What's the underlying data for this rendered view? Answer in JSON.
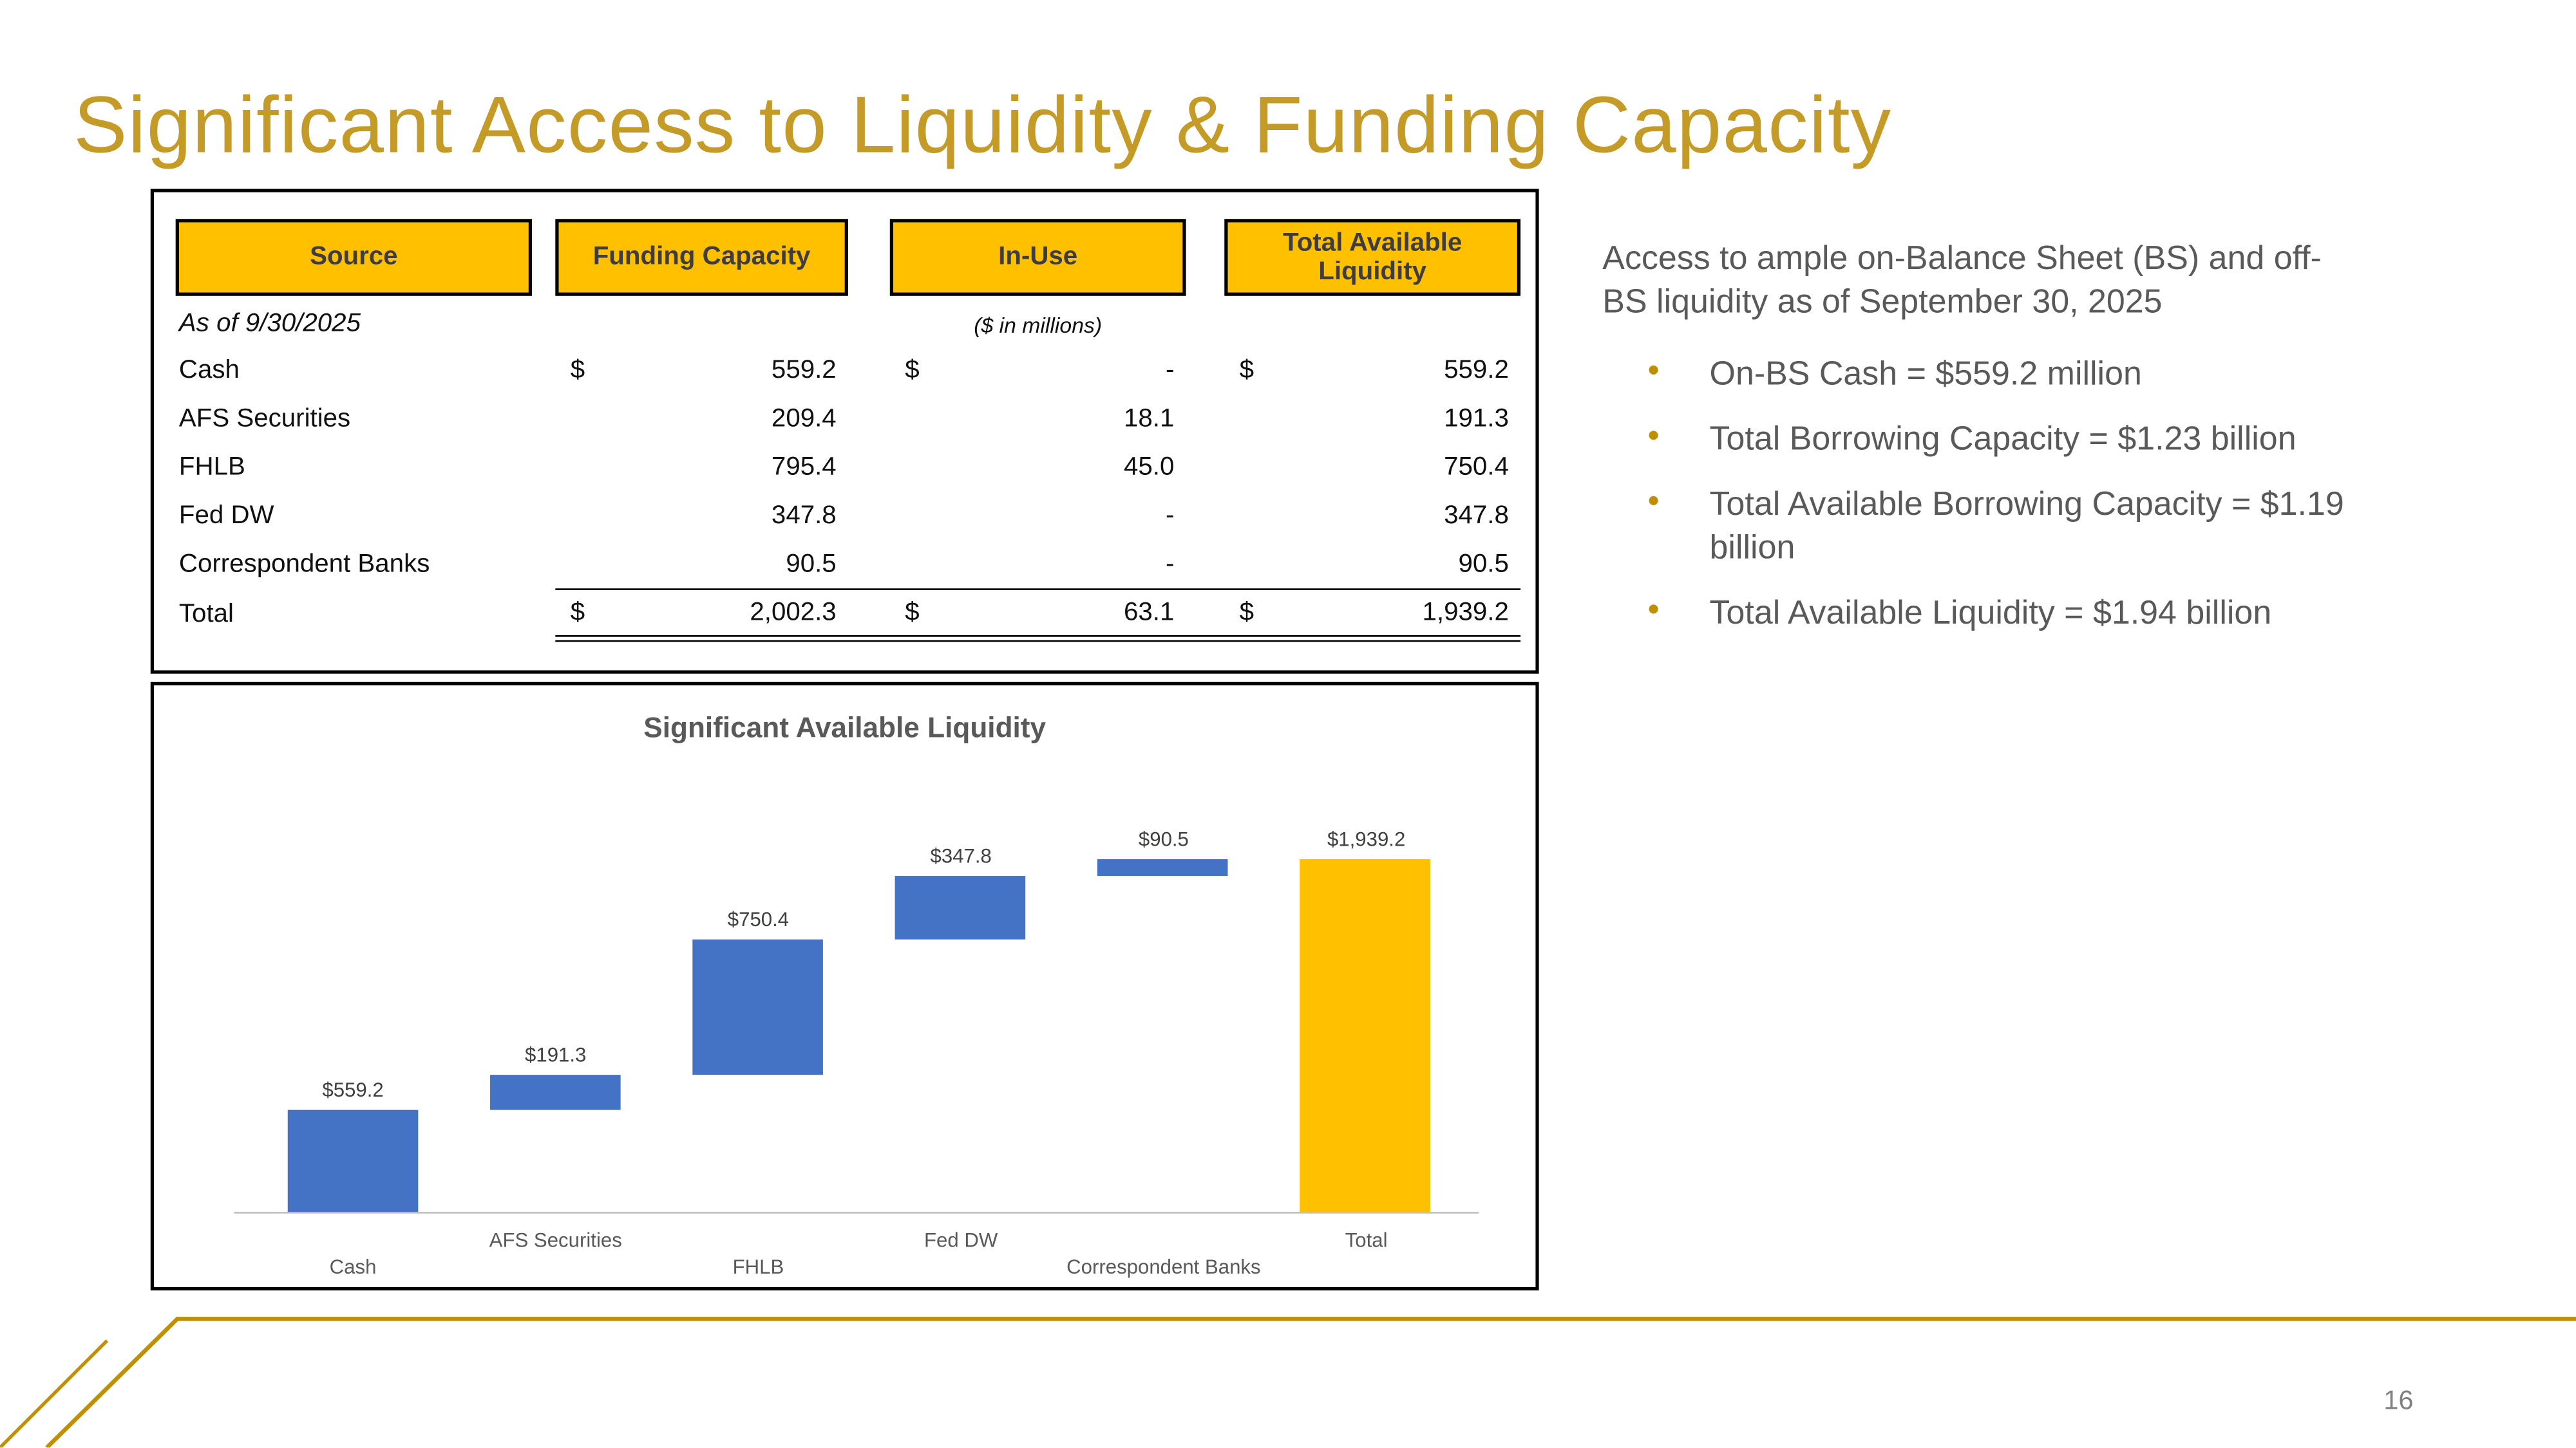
{
  "slide": {
    "title": "Significant Access to Liquidity & Funding Capacity",
    "page_number": "16"
  },
  "table": {
    "headers": [
      "Source",
      "Funding Capacity",
      "In-Use",
      "Total Available Liquidity"
    ],
    "as_of_label": "As of 9/30/2025",
    "units_label": "($ in millions)",
    "rows": [
      {
        "src": "Cash",
        "d": "$",
        "fc": "559.2",
        "iu": "-",
        "ta": "559.2"
      },
      {
        "src": "AFS Securities",
        "d": "",
        "fc": "209.4",
        "iu": "18.1",
        "ta": "191.3"
      },
      {
        "src": "FHLB",
        "d": "",
        "fc": "795.4",
        "iu": "45.0",
        "ta": "750.4"
      },
      {
        "src": "Fed DW",
        "d": "",
        "fc": "347.8",
        "iu": "-",
        "ta": "347.8"
      },
      {
        "src": "Correspondent Banks",
        "d": "",
        "fc": "90.5",
        "iu": "-",
        "ta": "90.5"
      }
    ],
    "total": {
      "src": "Total",
      "d": "$",
      "fc": "2,002.3",
      "iu": "63.1",
      "ta": "1,939.2"
    }
  },
  "chart_data": {
    "type": "bar",
    "subtype": "waterfall",
    "title": "Significant Available Liquidity",
    "categories": [
      "Cash",
      "AFS Securities",
      "FHLB",
      "Fed DW",
      "Correspondent Banks",
      "Total"
    ],
    "values": [
      559.2,
      191.3,
      750.4,
      347.8,
      90.5,
      1939.2
    ],
    "starts": [
      0,
      559.2,
      750.5,
      1500.9,
      1848.7,
      0
    ],
    "labels": [
      "$559.2",
      "$191.3",
      "$750.4",
      "$347.8",
      "$90.5",
      "$1,939.2"
    ],
    "colors": [
      "#4472C4",
      "#4472C4",
      "#4472C4",
      "#4472C4",
      "#4472C4",
      "#FFC000"
    ],
    "ylim": [
      0,
      2100
    ],
    "grid": false,
    "legend": "none"
  },
  "notes": {
    "intro": "Access to ample on-Balance Sheet (BS) and off-BS liquidity as of September 30, 2025",
    "bullet_glyph": "•",
    "bullets": [
      "On-BS Cash = $559.2 million",
      "Total Borrowing Capacity = $1.23 billion",
      "Total Available Borrowing Capacity = $1.19 billion",
      "Total Available Liquidity = $1.94 billion"
    ]
  },
  "colors": {
    "title_gold": "#C49B27",
    "accent_gold": "#FFC000",
    "bar_blue": "#4472C4",
    "text_gray": "#595959",
    "line_gold": "#BF9000",
    "axis_line": "#BFBFBF"
  }
}
